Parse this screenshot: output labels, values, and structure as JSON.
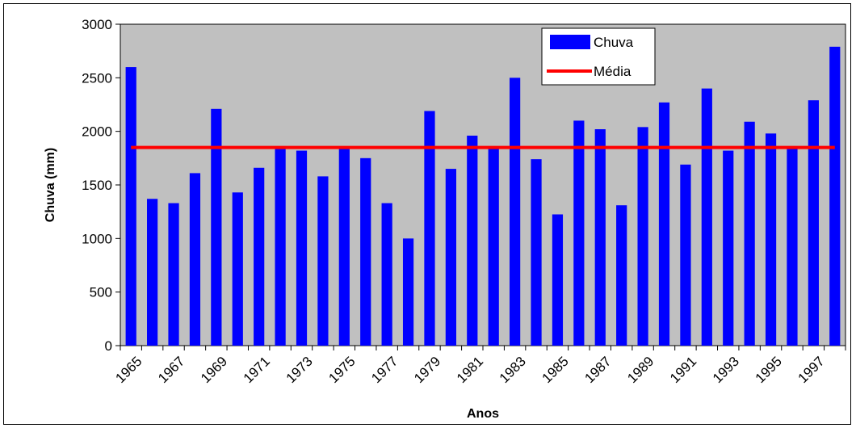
{
  "chart_data": {
    "type": "bar",
    "title": "",
    "xlabel": "Anos",
    "ylabel": "Chuva (mm)",
    "ylim": [
      0,
      3000
    ],
    "yticks": [
      0,
      500,
      1000,
      1500,
      2000,
      2500,
      3000
    ],
    "categories": [
      "1965",
      "1966",
      "1967",
      "1968",
      "1969",
      "1970",
      "1971",
      "1972",
      "1973",
      "1974",
      "1975",
      "1976",
      "1977",
      "1978",
      "1979",
      "1980",
      "1981",
      "1982",
      "1983",
      "1984",
      "1985",
      "1986",
      "1987",
      "1988",
      "1989",
      "1990",
      "1991",
      "1992",
      "1993",
      "1994",
      "1995",
      "1996",
      "1997",
      "1998"
    ],
    "x_tick_labels": [
      "1965",
      "1967",
      "1969",
      "1971",
      "1973",
      "1975",
      "1977",
      "1979",
      "1981",
      "1983",
      "1985",
      "1987",
      "1989",
      "1991",
      "1993",
      "1995",
      "1997"
    ],
    "series": [
      {
        "name": "Chuva",
        "kind": "bar",
        "color": "#0000ff",
        "values": [
          2600,
          1370,
          1330,
          1610,
          2210,
          1430,
          1660,
          1850,
          1820,
          1580,
          1850,
          1750,
          1330,
          1000,
          2190,
          1650,
          1960,
          1850,
          2500,
          1740,
          1225,
          2100,
          2020,
          1310,
          2040,
          2270,
          1690,
          2400,
          1820,
          2090,
          1980,
          1850,
          2290,
          2790
        ]
      },
      {
        "name": "Média",
        "kind": "line",
        "color": "#ff0000",
        "value": 1850
      }
    ],
    "legend_position": "top-right",
    "plot_background": "#c0c0c0",
    "grid": false
  }
}
